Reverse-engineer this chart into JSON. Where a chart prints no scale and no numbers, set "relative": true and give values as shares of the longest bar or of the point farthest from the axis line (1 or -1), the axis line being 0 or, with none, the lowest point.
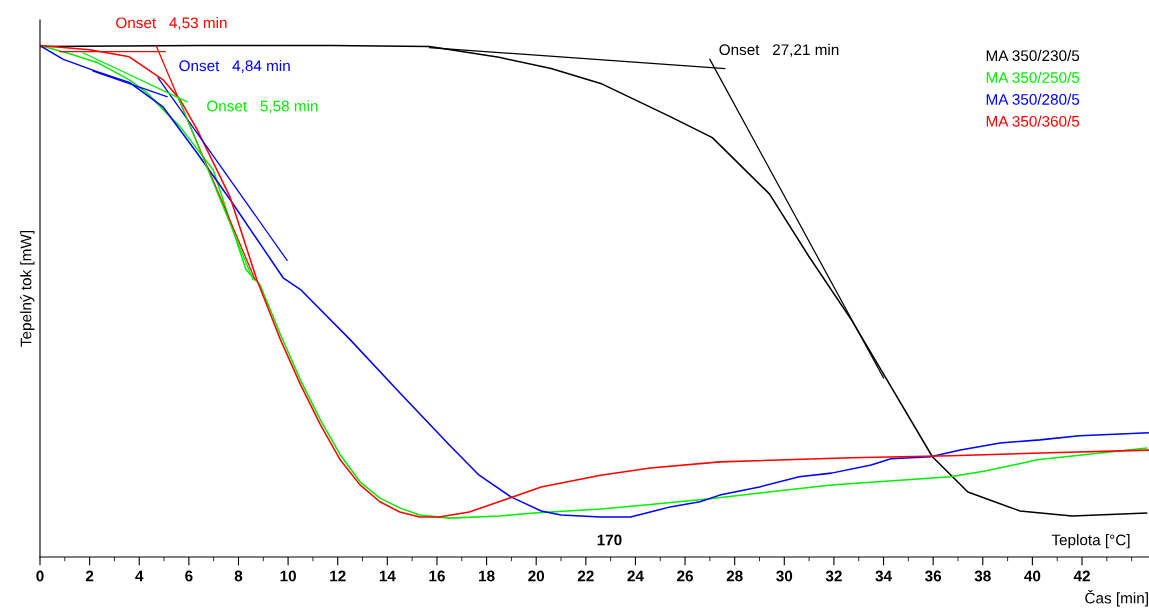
{
  "chart_data": {
    "type": "line",
    "relative": true,
    "ylabel": "Tepelný tok [mW]",
    "xlabel": "Čas [min]",
    "xlim": [
      0,
      44.7
    ],
    "xticks": [
      0,
      2,
      4,
      6,
      8,
      10,
      12,
      14,
      16,
      18,
      20,
      22,
      24,
      26,
      28,
      30,
      32,
      34,
      36,
      38,
      40,
      42
    ],
    "tick_labels": "x",
    "grid": false,
    "legend": "top right",
    "marker": "none",
    "line_style": "solid",
    "annotations": [
      "Onset   4,53 min",
      "Onset   4,84 min",
      "Onset   5,58 min",
      "Onset   27,21 min",
      "170",
      "Teplota [°C]"
    ],
    "series": [
      {
        "name": "MA 350/230/5",
        "color": "#000000",
        "x": [
          0,
          6.45,
          11.7,
          15.7,
          18.5,
          20.6,
          22.6,
          25.4,
          27.1,
          29.4,
          31.0,
          32.7,
          33.9,
          35.97,
          37.4,
          39.5,
          41.6,
          44.6
        ],
        "values": [
          0.998,
          1.0,
          1.0,
          0.998,
          0.977,
          0.955,
          0.926,
          0.861,
          0.82,
          0.71,
          0.587,
          0.464,
          0.366,
          0.196,
          0.127,
          0.09,
          0.08,
          0.086
        ]
      },
      {
        "name": "MA 350/250/5",
        "color": "#00ee00",
        "x": [
          0,
          1.2,
          2.3,
          3.6,
          4.3,
          5.65,
          6.98,
          8.3,
          8.87,
          9.7,
          10.5,
          11.3,
          12.1,
          12.9,
          13.7,
          14.5,
          15.3,
          16.5,
          18.5,
          19.9,
          22.6,
          24.5,
          27.0,
          31.9,
          36.7,
          38.1,
          40.2,
          44.6
        ],
        "values": [
          1.0,
          0.984,
          0.967,
          0.933,
          0.908,
          0.841,
          0.757,
          0.562,
          0.532,
          0.434,
          0.346,
          0.268,
          0.2,
          0.147,
          0.115,
          0.096,
          0.082,
          0.076,
          0.08,
          0.086,
          0.094,
          0.102,
          0.114,
          0.141,
          0.157,
          0.168,
          0.19,
          0.213
        ]
      },
      {
        "name": "MA 350/280/5",
        "color": "#0000ff",
        "x": [
          0,
          0.94,
          2.3,
          3.6,
          4.96,
          6.33,
          7.66,
          9.8,
          10.5,
          12.5,
          14.5,
          16.5,
          17.7,
          19.0,
          20.2,
          21.0,
          22.6,
          23.8,
          24.6,
          25.4,
          26.6,
          27.4,
          29.0,
          30.6,
          31.9,
          33.5,
          34.3,
          35.9,
          37.1,
          38.7,
          40.3,
          41.9,
          44.7
        ],
        "values": [
          1.0,
          0.973,
          0.949,
          0.928,
          0.88,
          0.79,
          0.699,
          0.546,
          0.523,
          0.425,
          0.321,
          0.219,
          0.16,
          0.117,
          0.09,
          0.082,
          0.078,
          0.078,
          0.088,
          0.098,
          0.108,
          0.121,
          0.137,
          0.157,
          0.164,
          0.18,
          0.192,
          0.196,
          0.209,
          0.223,
          0.229,
          0.237,
          0.243
        ]
      },
      {
        "name": "MA 350/360/5",
        "color": "#ff0000",
        "x": [
          0,
          2.0,
          3.6,
          4.96,
          5.65,
          6.33,
          7.66,
          8.74,
          9.7,
          10.5,
          11.3,
          12.1,
          12.9,
          13.7,
          14.5,
          15.3,
          16.1,
          17.3,
          18.5,
          20.2,
          22.6,
          24.6,
          27.4,
          32.7,
          36.7,
          40.7,
          44.7
        ],
        "values": [
          1.0,
          0.992,
          0.978,
          0.933,
          0.894,
          0.836,
          0.704,
          0.542,
          0.424,
          0.337,
          0.259,
          0.19,
          0.141,
          0.108,
          0.088,
          0.078,
          0.078,
          0.088,
          0.108,
          0.137,
          0.16,
          0.174,
          0.186,
          0.194,
          0.198,
          0.204,
          0.209
        ]
      },
      {
        "color": "#ff0000",
        "x": [
          0.8,
          5.04
        ],
        "values": [
          0.988,
          0.988
        ]
      },
      {
        "color": "#ff0000",
        "x": [
          4.68,
          8.67
        ],
        "values": [
          1.0,
          0.542
        ]
      },
      {
        "color": "#0000ff",
        "x": [
          2.14,
          5.12
        ],
        "values": [
          0.95,
          0.9
        ]
      },
      {
        "color": "#0000ff",
        "x": [
          4.76,
          9.96
        ],
        "values": [
          0.937,
          0.58
        ]
      },
      {
        "color": "#00ee00",
        "x": [
          1.73,
          5.93
        ],
        "values": [
          0.986,
          0.89
        ]
      },
      {
        "color": "#00ee00",
        "x": [
          5.56,
          8.59
        ],
        "values": [
          0.9,
          0.542
        ]
      },
      {
        "color": "#000000",
        "x": [
          15.7,
          27.6
        ],
        "values": [
          0.996,
          0.955
        ]
      },
      {
        "color": "#000000",
        "x": [
          27.0,
          34.0
        ],
        "values": [
          0.973,
          0.35
        ]
      }
    ]
  }
}
